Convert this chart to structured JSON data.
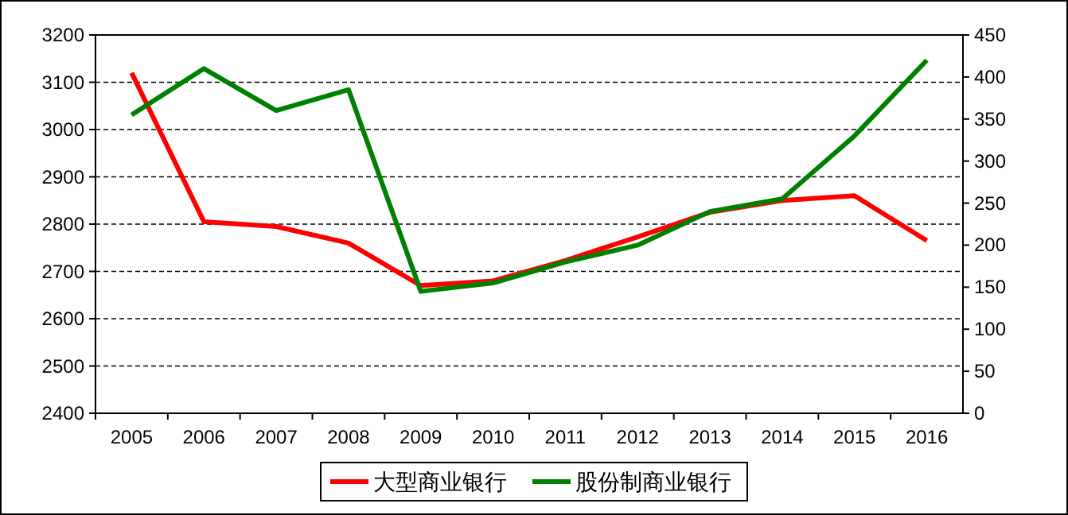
{
  "chart_data": {
    "type": "line",
    "categories": [
      "2005",
      "2006",
      "2007",
      "2008",
      "2009",
      "2010",
      "2011",
      "2012",
      "2013",
      "2014",
      "2015",
      "2016"
    ],
    "series": [
      {
        "name": "大型商业银行",
        "color": "#ff0000",
        "values": [
          3120,
          2805,
          2795,
          2760,
          2670,
          2680,
          2723,
          2773,
          2825,
          2850,
          2860,
          2765
        ]
      },
      {
        "name": "股份制商业银行",
        "color": "#008000",
        "axis": "y2",
        "values": [
          355,
          410,
          360,
          385,
          145,
          155,
          180,
          200,
          240,
          255,
          330,
          420
        ]
      }
    ],
    "ylim": [
      2400,
      3200
    ],
    "yticks": [
      2400,
      2500,
      2600,
      2700,
      2800,
      2900,
      3000,
      3100,
      3200
    ],
    "y2lim": [
      0,
      450
    ],
    "y2ticks": [
      0,
      50,
      100,
      150,
      200,
      250,
      300,
      350,
      400,
      450
    ],
    "grid": "y",
    "legend": "bottom",
    "marker": "none",
    "line_style": "solid"
  }
}
